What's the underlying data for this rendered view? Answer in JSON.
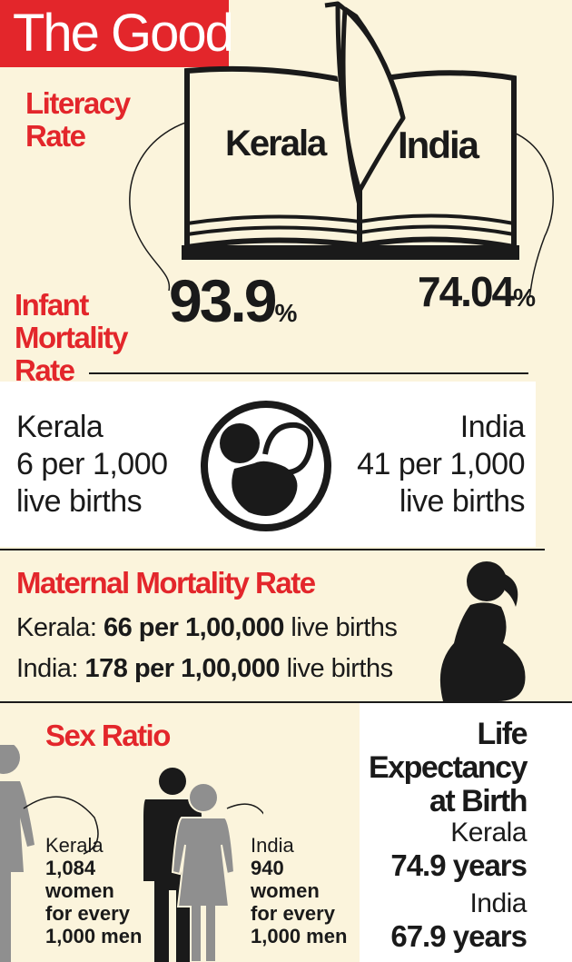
{
  "title": "The Good",
  "literacy": {
    "label": "Literacy Rate",
    "kerala_label": "Kerala",
    "india_label": "India",
    "kerala_value": "93.9",
    "india_value": "74.04",
    "unit": "%"
  },
  "infant": {
    "label_line1": "Infant",
    "label_line2": "Mortality",
    "label_line3": "Rate",
    "kerala": [
      "Kerala",
      "6 per 1,000",
      "live births"
    ],
    "india": [
      "India",
      "41 per 1,000",
      "live births"
    ]
  },
  "maternal": {
    "label": "Maternal Mortality Rate",
    "kerala_prefix": "Kerala:",
    "kerala_value": "66 per 1,00,000",
    "india_prefix": "India:",
    "india_value": "178 per 1,00,000",
    "suffix": "live births"
  },
  "sex_ratio": {
    "label": "Sex Ratio",
    "kerala": {
      "place": "Kerala",
      "value": "1,084",
      "line1": "women",
      "line2": "for every",
      "line3": "1,000 men"
    },
    "india": {
      "place": "India",
      "value": "940",
      "line1": "women",
      "line2": "for every",
      "line3": "1,000 men"
    }
  },
  "life_expectancy": {
    "title_line1": "Life",
    "title_line2": "Expectancy",
    "title_line3": "at Birth",
    "kerala_place": "Kerala",
    "kerala_value": "74.9 years",
    "india_place": "India",
    "india_value": "67.9 years"
  },
  "colors": {
    "accent": "#e3262b",
    "background": "#fbf4dc",
    "ink": "#1a1a1a",
    "figure_gray": "#8f8f8f"
  },
  "icons": [
    "book-icon",
    "fetus-icon",
    "pregnant-woman-icon",
    "woman-figure-icon",
    "man-figure-icon"
  ]
}
